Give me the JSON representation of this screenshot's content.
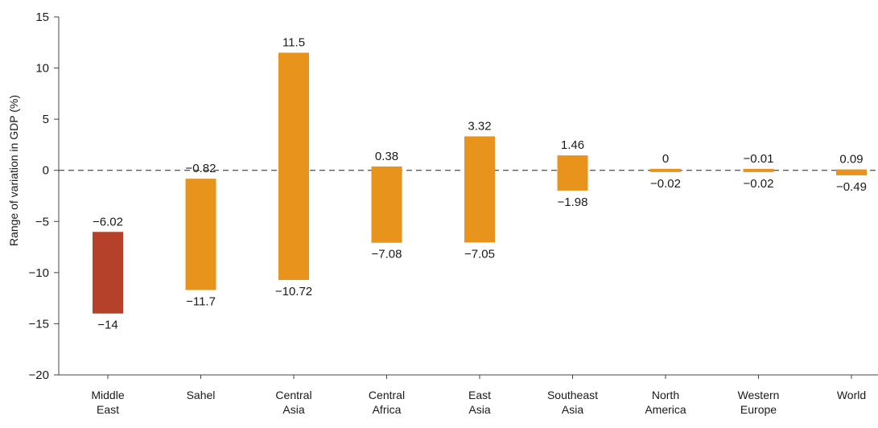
{
  "chart_data": {
    "type": "bar",
    "subtype": "floating-range",
    "title": "",
    "xlabel": "",
    "ylabel": "Range of variation in GDP (%)",
    "ylim": [
      -20,
      15
    ],
    "yticks": [
      15,
      10,
      5,
      0,
      -5,
      -10,
      -15,
      -20
    ],
    "ytick_labels": [
      "15",
      "10",
      "5",
      "0",
      "−5",
      "−10",
      "−15",
      "−20"
    ],
    "grid": false,
    "zero_line": "dashed",
    "colors": {
      "highlight": "#b5412b",
      "default": "#e8941c"
    },
    "categories": [
      {
        "name": "Middle East",
        "lines": [
          "Middle",
          "East"
        ],
        "high": -6.02,
        "low": -14,
        "high_label": "−6.02",
        "low_label": "−14",
        "color": "#b5412b"
      },
      {
        "name": "Sahel",
        "lines": [
          "Sahel"
        ],
        "high": -0.82,
        "low": -11.7,
        "high_label": "−0.82",
        "low_label": "−11.7",
        "color": "#e8941c"
      },
      {
        "name": "Central Asia",
        "lines": [
          "Central",
          "Asia"
        ],
        "high": 11.5,
        "low": -10.72,
        "high_label": "11.5",
        "low_label": "−10.72",
        "color": "#e8941c"
      },
      {
        "name": "Central Africa",
        "lines": [
          "Central",
          "Africa"
        ],
        "high": 0.38,
        "low": -7.08,
        "high_label": "0.38",
        "low_label": "−7.08",
        "color": "#e8941c"
      },
      {
        "name": "East Asia",
        "lines": [
          "East",
          "Asia"
        ],
        "high": 3.32,
        "low": -7.05,
        "high_label": "3.32",
        "low_label": "−7.05",
        "color": "#e8941c"
      },
      {
        "name": "Southeast Asia",
        "lines": [
          "Southeast",
          "Asia"
        ],
        "high": 1.46,
        "low": -1.98,
        "high_label": "1.46",
        "low_label": "−1.98",
        "color": "#e8941c"
      },
      {
        "name": "North America",
        "lines": [
          "North",
          "America"
        ],
        "high": 0,
        "low": -0.02,
        "high_label": "0",
        "low_label": "−0.02",
        "color": "#e8941c"
      },
      {
        "name": "Western Europe",
        "lines": [
          "Western",
          "Europe"
        ],
        "high": -0.01,
        "low": -0.02,
        "high_label": "−0.01",
        "low_label": "−0.02",
        "color": "#e8941c"
      },
      {
        "name": "World",
        "lines": [
          "World"
        ],
        "high": 0.09,
        "low": -0.49,
        "high_label": "0.09",
        "low_label": "−0.49",
        "color": "#e8941c"
      }
    ]
  }
}
